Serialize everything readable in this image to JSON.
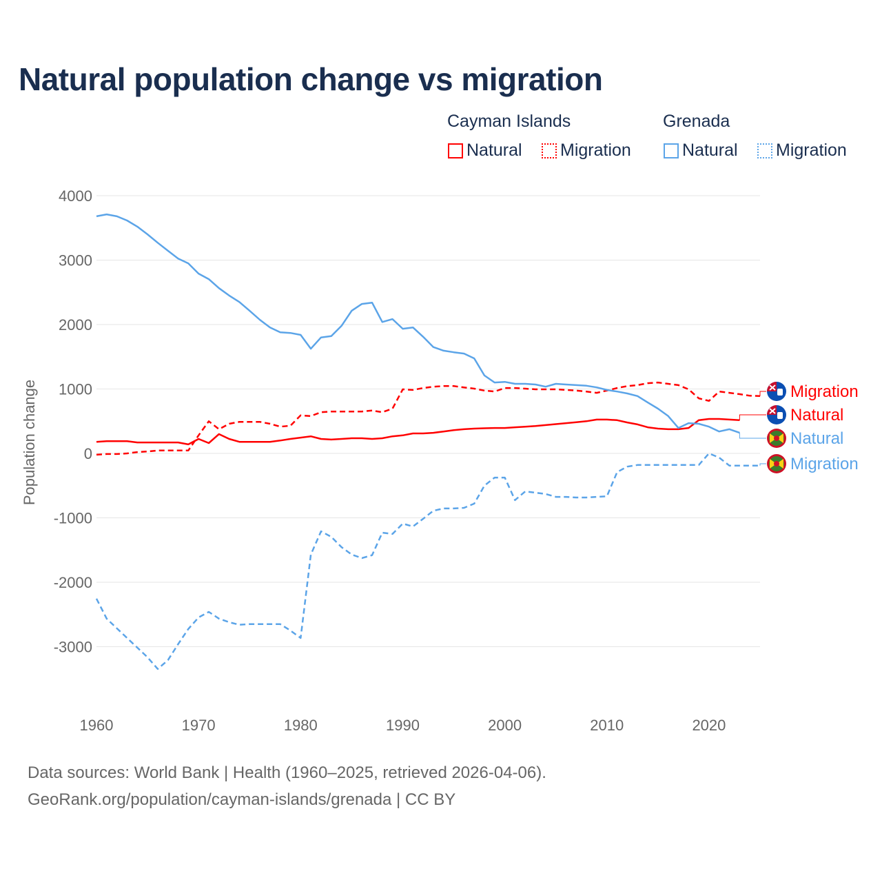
{
  "title": "Natural population change vs migration",
  "legend": {
    "groups": [
      {
        "name": "Cayman Islands",
        "items": [
          "Natural",
          "Migration"
        ],
        "color": "#ff0000"
      },
      {
        "name": "Grenada",
        "items": [
          "Natural",
          "Migration"
        ],
        "color": "#5ba4e8"
      }
    ]
  },
  "footer": {
    "line1": "Data sources: World Bank | Health (1960–2025, retrieved 2026-04-06).",
    "line2": "GeoRank.org/population/cayman-islands/grenada | CC BY"
  },
  "chart_data": {
    "type": "line",
    "title": "Natural population change vs migration",
    "xlabel": "",
    "ylabel": "Population change",
    "xlim": [
      1960,
      2025
    ],
    "ylim": [
      -4000,
      4000
    ],
    "xticks": [
      1960,
      1970,
      1980,
      1990,
      2000,
      2010,
      2020
    ],
    "yticks": [
      4000,
      3000,
      2000,
      1000,
      0,
      -1000,
      -2000,
      -3000
    ],
    "grid": true,
    "series": [
      {
        "name": "Cayman Islands Natural",
        "label": "Natural",
        "flag": "cayman-islands-flag",
        "color": "#ff0000",
        "dash": "solid",
        "start": 1960,
        "values": [
          180,
          190,
          190,
          190,
          170,
          170,
          170,
          170,
          170,
          140,
          225,
          160,
          300,
          225,
          180,
          180,
          180,
          180,
          200,
          225,
          245,
          265,
          225,
          215,
          225,
          235,
          235,
          225,
          235,
          265,
          280,
          310,
          310,
          320,
          340,
          360,
          375,
          385,
          390,
          395,
          395,
          405,
          415,
          425,
          440,
          455,
          470,
          485,
          500,
          525,
          525,
          515,
          480,
          450,
          405,
          385,
          375,
          375,
          395,
          515,
          535,
          535,
          525,
          515
        ]
      },
      {
        "name": "Cayman Islands Migration",
        "label": "Migration",
        "flag": "cayman-islands-flag",
        "color": "#ff0000",
        "dash": "dashed",
        "start": 1960,
        "values": [
          -20,
          -10,
          -10,
          0,
          20,
          30,
          45,
          45,
          45,
          45,
          280,
          500,
          375,
          460,
          490,
          490,
          490,
          460,
          415,
          430,
          590,
          580,
          640,
          650,
          650,
          650,
          650,
          665,
          640,
          695,
          995,
          985,
          1015,
          1035,
          1045,
          1045,
          1025,
          1005,
          975,
          960,
          1015,
          1015,
          1005,
          995,
          995,
          995,
          985,
          975,
          960,
          940,
          975,
          1015,
          1045,
          1060,
          1090,
          1100,
          1080,
          1060,
          995,
          855,
          815,
          960,
          940,
          920,
          895,
          890
        ]
      },
      {
        "name": "Grenada Natural",
        "label": "Natural",
        "flag": "grenada-flag",
        "color": "#5ba4e8",
        "dash": "solid",
        "start": 1960,
        "values": [
          3680,
          3710,
          3680,
          3615,
          3520,
          3400,
          3270,
          3145,
          3025,
          2950,
          2790,
          2705,
          2565,
          2450,
          2350,
          2215,
          2075,
          1955,
          1880,
          1870,
          1840,
          1625,
          1800,
          1820,
          1980,
          2215,
          2320,
          2340,
          2040,
          2085,
          1935,
          1955,
          1810,
          1650,
          1595,
          1570,
          1550,
          1475,
          1210,
          1100,
          1110,
          1080,
          1080,
          1070,
          1035,
          1080,
          1070,
          1060,
          1050,
          1025,
          985,
          960,
          930,
          890,
          790,
          695,
          580,
          395,
          470,
          460,
          415,
          340,
          375,
          320
        ]
      },
      {
        "name": "Grenada Migration",
        "label": "Migration",
        "flag": "grenada-flag",
        "color": "#5ba4e8",
        "dash": "dashed",
        "start": 1960,
        "values": [
          -2255,
          -2565,
          -2715,
          -2865,
          -3015,
          -3165,
          -3345,
          -3210,
          -2960,
          -2725,
          -2545,
          -2460,
          -2565,
          -2620,
          -2660,
          -2650,
          -2650,
          -2650,
          -2650,
          -2750,
          -2865,
          -1570,
          -1210,
          -1295,
          -1455,
          -1570,
          -1625,
          -1580,
          -1230,
          -1250,
          -1090,
          -1135,
          -1015,
          -890,
          -855,
          -855,
          -845,
          -780,
          -500,
          -375,
          -375,
          -725,
          -590,
          -610,
          -630,
          -675,
          -675,
          -685,
          -685,
          -675,
          -665,
          -290,
          -205,
          -180,
          -180,
          -180,
          -180,
          -180,
          -180,
          -180,
          0,
          -65,
          -190,
          -190,
          -190,
          -190
        ]
      }
    ],
    "end_labels": [
      {
        "text": "Migration",
        "color": "#ff0000",
        "flag": "cayman-islands-flag",
        "value": 940
      },
      {
        "text": "Natural",
        "color": "#ff0000",
        "flag": "cayman-islands-flag",
        "value": 580
      },
      {
        "text": "Natural",
        "color": "#5ba4e8",
        "flag": "grenada-flag",
        "value": 215
      },
      {
        "text": "Migration",
        "color": "#5ba4e8",
        "flag": "grenada-flag",
        "value": -190
      }
    ]
  }
}
